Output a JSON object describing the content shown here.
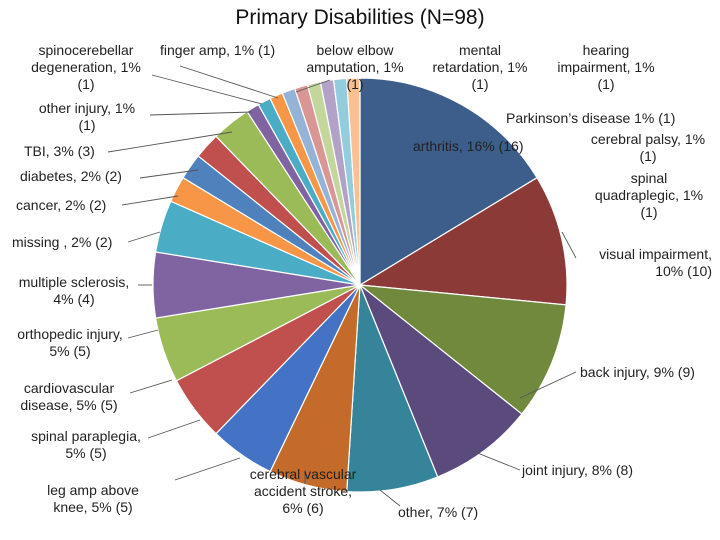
{
  "chart_data": {
    "type": "pie",
    "title": "Primary Disabilities (N=98)",
    "total": 98,
    "slices": [
      {
        "label": "arthritis, 16% (16)",
        "value": 16,
        "color": "#3d5d8a"
      },
      {
        "label": "visual impairment, 10% (10)",
        "value": 10,
        "color": "#8c3a37"
      },
      {
        "label": "back injury, 9% (9)",
        "value": 9,
        "color": "#71893d"
      },
      {
        "label": "joint injury, 8% (8)",
        "value": 8,
        "color": "#5b4a7c"
      },
      {
        "label": "other, 7% (7)",
        "value": 7,
        "color": "#36849a"
      },
      {
        "label": "cerebral vascular accident stroke, 6% (6)",
        "value": 6,
        "color": "#c46a2a"
      },
      {
        "label": "leg amp above knee, 5% (5)",
        "value": 5,
        "color": "#4472c4"
      },
      {
        "label": "spinal paraplegia, 5% (5)",
        "value": 5,
        "color": "#c0504d"
      },
      {
        "label": "cardiovascular disease, 5% (5)",
        "value": 5,
        "color": "#9bbb59"
      },
      {
        "label": "orthopedic injury, 5% (5)",
        "value": 5,
        "color": "#8064a2"
      },
      {
        "label": "multiple sclerosis, 4% (4)",
        "value": 4,
        "color": "#4bacc6"
      },
      {
        "label": "missing , 2% (2)",
        "value": 2,
        "color": "#f79646"
      },
      {
        "label": "cancer, 2% (2)",
        "value": 2,
        "color": "#4f81bd"
      },
      {
        "label": "diabetes, 2% (2)",
        "value": 2,
        "color": "#c0504d"
      },
      {
        "label": "TBI, 3% (3)",
        "value": 3,
        "color": "#9bbb59"
      },
      {
        "label": "other injury, 1% (1)",
        "value": 1,
        "color": "#8064a2"
      },
      {
        "label": "spinocerebellar degeneration, 1% (1)",
        "value": 1,
        "color": "#4bacc6"
      },
      {
        "label": "finger amp, 1% (1)",
        "value": 1,
        "color": "#f79646"
      },
      {
        "label": "below elbow amputation, 1% (1)",
        "value": 1,
        "color": "#95b3d7"
      },
      {
        "label": "mental retardation, 1% (1)",
        "value": 1,
        "color": "#d99694"
      },
      {
        "label": "hearing impairment, 1% (1)",
        "value": 1,
        "color": "#c3d69b"
      },
      {
        "label": "Parkinson’s disease 1% (1)",
        "value": 1,
        "color": "#b3a2c7"
      },
      {
        "label": "cerebral palsy, 1% (1)",
        "value": 1,
        "color": "#93cddd"
      },
      {
        "label": "spinal quadraplegic, 1% (1)",
        "value": 1,
        "color": "#fac090"
      }
    ]
  },
  "labels": {
    "arthritis": "arthritis, 16% (16)",
    "visual_1": "visual impairment,",
    "visual_2": "10% (10)",
    "back": "back injury, 9% (9)",
    "joint": "joint injury, 8% (8)",
    "other": "other, 7% (7)",
    "cva_1": "cerebral vascular",
    "cva_2": "accident stroke,",
    "cva_3": "6% (6)",
    "leg_1": "leg amp above",
    "leg_2": "knee, 5% (5)",
    "para_1": "spinal paraplegia,",
    "para_2": "5% (5)",
    "cardio_1": "cardiovascular",
    "cardio_2": "disease, 5% (5)",
    "ortho_1": "orthopedic injury,",
    "ortho_2": "5% (5)",
    "ms_1": "multiple sclerosis,",
    "ms_2": "4% (4)",
    "missing": "missing , 2% (2)",
    "cancer": "cancer, 2% (2)",
    "diabetes": "diabetes, 2% (2)",
    "tbi": "TBI, 3% (3)",
    "otherinj_1": "other injury, 1%",
    "otherinj_2": "(1)",
    "spino_1": "spinocerebellar",
    "spino_2": "degeneration, 1%",
    "spino_3": "(1)",
    "finger": "finger amp, 1% (1)",
    "elbow_1": "below elbow",
    "elbow_2": "amputation, 1%",
    "elbow_3": "(1)",
    "mental_1": "mental",
    "mental_2": "retardation, 1%",
    "mental_3": "(1)",
    "hearing_1": "hearing",
    "hearing_2": "impairment, 1%",
    "hearing_3": "(1)",
    "parkinson": "Parkinson’s disease 1% (1)",
    "palsy_1": "cerebral palsy, 1%",
    "palsy_2": "(1)",
    "quad_1": "spinal",
    "quad_2": "quadraplegic, 1%",
    "quad_3": "(1)"
  }
}
